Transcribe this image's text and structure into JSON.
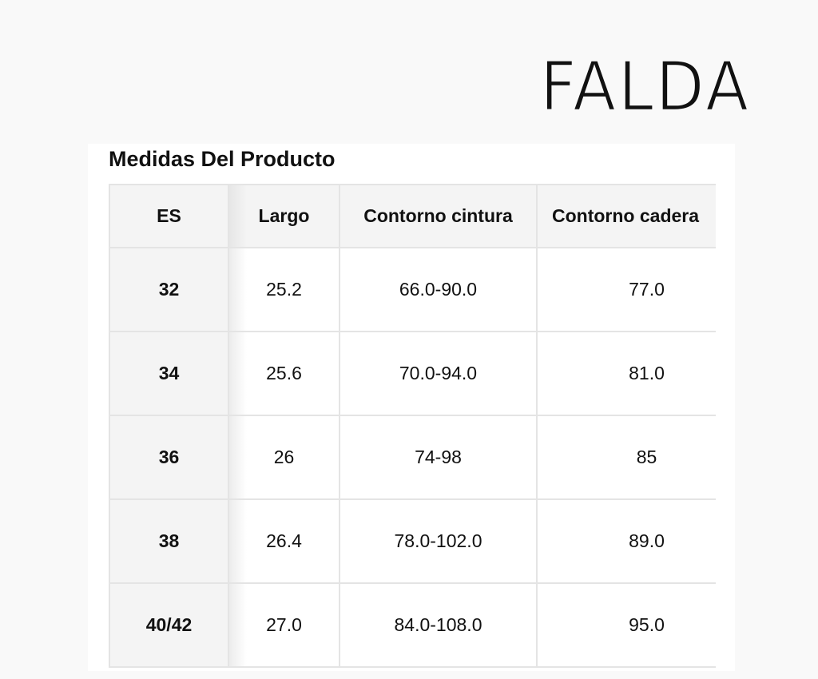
{
  "title": "FALDA",
  "heading": "Medidas Del Producto",
  "table": {
    "headers": [
      "ES",
      "Largo",
      "Contorno cintura",
      "Contorno cadera"
    ],
    "rows": [
      [
        "32",
        "25.2",
        "66.0-90.0",
        "77.0"
      ],
      [
        "34",
        "25.6",
        "70.0-94.0",
        "81.0"
      ],
      [
        "36",
        "26",
        "74-98",
        "85"
      ],
      [
        "38",
        "26.4",
        "78.0-102.0",
        "89.0"
      ],
      [
        "40/42",
        "27.0",
        "84.0-108.0",
        "95.0"
      ]
    ]
  }
}
